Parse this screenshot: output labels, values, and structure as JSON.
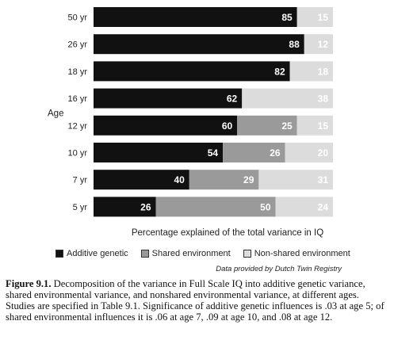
{
  "chart_data": {
    "type": "bar",
    "orientation": "horizontal",
    "stacked": true,
    "categories": [
      "50 yr",
      "26 yr",
      "18 yr",
      "16 yr",
      "12 yr",
      "10 yr",
      "7 yr",
      "5 yr"
    ],
    "series": [
      {
        "name": "Additive genetic",
        "values": [
          85,
          88,
          82,
          62,
          60,
          54,
          40,
          26
        ],
        "color": "#111111"
      },
      {
        "name": "Shared environment",
        "values": [
          0,
          0,
          0,
          0,
          25,
          26,
          29,
          50
        ],
        "color": "#9a9a9a"
      },
      {
        "name": "Non-shared environment",
        "values": [
          15,
          12,
          18,
          38,
          15,
          20,
          31,
          24
        ],
        "color": "#dcdcdc"
      }
    ],
    "ylabel": "Age",
    "xlabel": "Percentage explained of the total variance in IQ",
    "xlim": [
      0,
      100
    ],
    "legend_position": "bottom"
  },
  "source": "Data provided by Dutch Twin Registry",
  "caption": {
    "label": "Figure 9.1.",
    "text": "Decomposition of the variance in Full Scale IQ into additive genetic variance, shared environmental variance, and nonshared environmental variance, at different ages. Studies are specified in Table 9.1. Significance of additive genetic influences is .03 at age 5; of shared environmental influences it is .06 at age 7, .09 at age 10, and .08 at age 12."
  }
}
